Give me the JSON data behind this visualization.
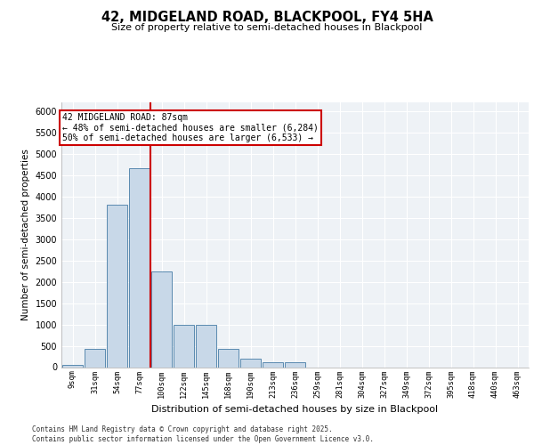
{
  "title1": "42, MIDGELAND ROAD, BLACKPOOL, FY4 5HA",
  "title2": "Size of property relative to semi-detached houses in Blackpool",
  "xlabel": "Distribution of semi-detached houses by size in Blackpool",
  "ylabel": "Number of semi-detached properties",
  "footer": "Contains HM Land Registry data © Crown copyright and database right 2025.\nContains public sector information licensed under the Open Government Licence v3.0.",
  "bin_labels": [
    "9sqm",
    "31sqm",
    "54sqm",
    "77sqm",
    "100sqm",
    "122sqm",
    "145sqm",
    "168sqm",
    "190sqm",
    "213sqm",
    "236sqm",
    "259sqm",
    "281sqm",
    "304sqm",
    "327sqm",
    "349sqm",
    "372sqm",
    "395sqm",
    "418sqm",
    "440sqm",
    "463sqm"
  ],
  "bar_values": [
    50,
    430,
    3800,
    4650,
    2250,
    1000,
    1000,
    430,
    200,
    120,
    110,
    0,
    0,
    0,
    0,
    0,
    0,
    0,
    0,
    0,
    0
  ],
  "bar_color": "#c8d8e8",
  "bar_edge_color": "#5a8ab0",
  "vline_x": 3.5,
  "vline_color": "#cc0000",
  "annotation_text": "42 MIDGELAND ROAD: 87sqm\n← 48% of semi-detached houses are smaller (6,284)\n50% of semi-detached houses are larger (6,533) →",
  "annotation_box_color": "#cc0000",
  "ylim": [
    0,
    6200
  ],
  "yticks": [
    0,
    500,
    1000,
    1500,
    2000,
    2500,
    3000,
    3500,
    4000,
    4500,
    5000,
    5500,
    6000
  ],
  "bg_color": "#eef2f6",
  "grid_color": "#ffffff"
}
